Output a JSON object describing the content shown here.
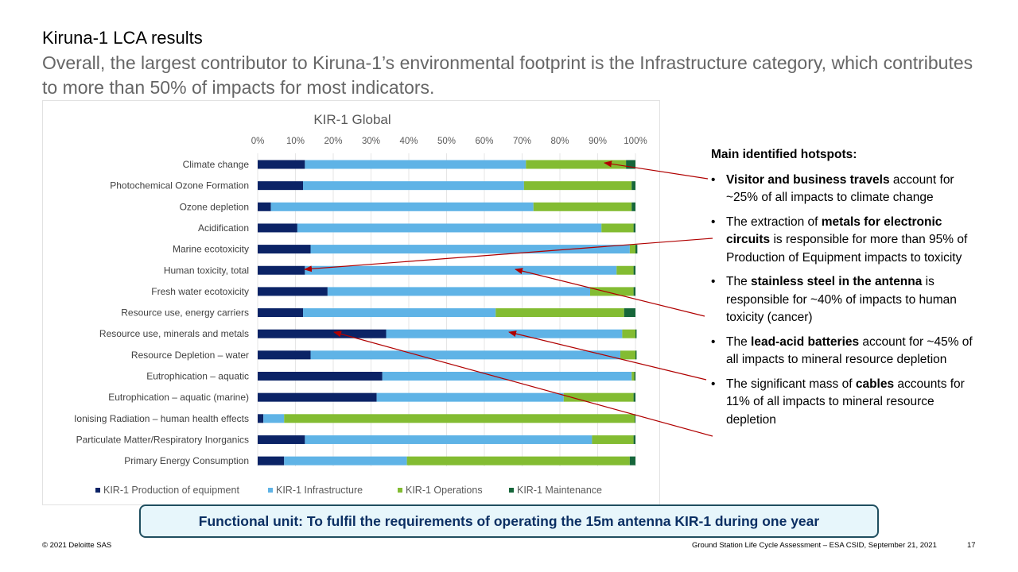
{
  "slide": {
    "title": "Kiruna-1 LCA results",
    "subtitle": "Overall, the largest contributor to Kiruna-1’s environmental footprint is the Infrastructure category, which contributes to more than 50% of impacts for most indicators."
  },
  "colors": {
    "production": "#0b2366",
    "infrastructure": "#5fb3e6",
    "operations": "#83bc32",
    "maintenance": "#16663a",
    "arrow": "#b00000",
    "box_border": "#1f4e5f",
    "box_fill": "#e7f6fb"
  },
  "chart_data": {
    "type": "bar",
    "orientation": "horizontal",
    "stacked": true,
    "title": "KIR-1 Global",
    "x_ticks": [
      "0%",
      "10%",
      "20%",
      "30%",
      "40%",
      "50%",
      "60%",
      "70%",
      "80%",
      "90%",
      "100%"
    ],
    "xlim": [
      0,
      100
    ],
    "legend_position": "bottom",
    "categories": [
      "Climate change",
      "Photochemical Ozone Formation",
      "Ozone depletion",
      "Acidification",
      "Marine ecotoxicity",
      "Human toxicity, total",
      "Fresh water ecotoxicity",
      "Resource use, energy carriers",
      "Resource use, minerals and metals",
      "Resource Depletion – water",
      "Eutrophication – aquatic",
      "Eutrophication – aquatic (marine)",
      "Ionising Radiation – human health effects",
      "Particulate Matter/Respiratory Inorganics",
      "Primary Energy Consumption"
    ],
    "series": [
      {
        "name": "KIR-1 Production of equipment",
        "values": [
          12.5,
          12.0,
          3.5,
          10.5,
          14.0,
          12.5,
          18.5,
          12.0,
          34.0,
          14.0,
          33.0,
          31.5,
          1.5,
          12.5,
          7.0
        ]
      },
      {
        "name": "KIR-1 Infrastructure",
        "values": [
          58.5,
          58.5,
          69.5,
          80.5,
          84.5,
          82.5,
          69.5,
          51.0,
          62.5,
          82.0,
          66.0,
          49.5,
          5.5,
          76.0,
          32.5
        ]
      },
      {
        "name": "KIR-1 Operations",
        "values": [
          26.5,
          28.5,
          26.0,
          8.5,
          1.5,
          4.5,
          11.5,
          34.0,
          3.5,
          4.0,
          0.7,
          18.5,
          92.8,
          11.0,
          59.0
        ]
      },
      {
        "name": "KIR-1 Maintenance",
        "values": [
          2.5,
          1.0,
          1.0,
          0.5,
          0.5,
          0.5,
          0.5,
          3.0,
          0.3,
          0.3,
          0.3,
          0.5,
          0.2,
          0.5,
          1.5
        ]
      }
    ]
  },
  "hotspots": {
    "heading": "Main identified hotspots:",
    "bullet": "•",
    "items": [
      {
        "pre": "",
        "bold": "Visitor and business travels",
        "post": " account for ~25% of all impacts to climate change"
      },
      {
        "pre": "The extraction of ",
        "bold": "metals for electronic circuits",
        "post": " is responsible for more than 95% of Production of Equipment impacts to toxicity"
      },
      {
        "pre": "The ",
        "bold": "stainless steel in the antenna",
        "post": " is responsible for ~40% of impacts to human toxicity (cancer)"
      },
      {
        "pre": "The ",
        "bold": "lead-acid batteries",
        "post": " account for ~45% of all impacts to mineral resource depletion"
      },
      {
        "pre": "The significant mass of ",
        "bold": "cables",
        "post": " accounts for 11% of all impacts to mineral resource depletion"
      }
    ]
  },
  "functional_unit": "Functional unit: To fulfil the requirements of operating the 15m antenna KIR-1 during one year",
  "footer": {
    "left": "© 2021 Deloitte SAS",
    "center": "Ground Station Life Cycle Assessment – ESA CSID, September 21, 2021",
    "page": "17"
  }
}
